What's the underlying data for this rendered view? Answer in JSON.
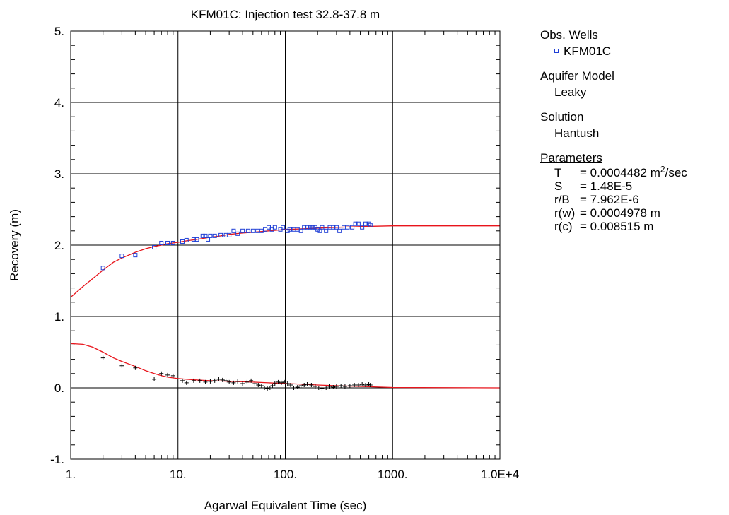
{
  "chart_data": {
    "type": "scatter",
    "title": "KFM01C: Injection test 32.8-37.8 m",
    "xlabel": "Agarwal Equivalent Time (sec)",
    "ylabel": "Recovery (m)",
    "x_scale": "log",
    "xlim": [
      1,
      10000
    ],
    "ylim": [
      -1,
      5
    ],
    "x_tick_values": [
      1,
      10,
      100,
      1000,
      10000
    ],
    "x_tick_labels": [
      "1.",
      "10.",
      "100.",
      "1000.",
      "1.0E+4"
    ],
    "y_tick_values": [
      -1,
      0,
      1,
      2,
      3,
      4,
      5
    ],
    "y_tick_labels": [
      "-1.",
      "0.",
      "1.",
      "2.",
      "3.",
      "4.",
      "5."
    ],
    "grid": true,
    "colors": {
      "observed": "#1f3fd6",
      "derivative": "#000000",
      "fit": "#e8141b"
    },
    "series": [
      {
        "name": "KFM01C",
        "kind": "observed",
        "marker": "square",
        "points": [
          [
            2,
            1.68
          ],
          [
            3,
            1.85
          ],
          [
            4,
            1.86
          ],
          [
            6,
            1.97
          ],
          [
            7,
            2.03
          ],
          [
            8,
            2.03
          ],
          [
            9,
            2.03
          ],
          [
            11,
            2.05
          ],
          [
            12,
            2.07
          ],
          [
            14,
            2.08
          ],
          [
            15,
            2.08
          ],
          [
            17,
            2.13
          ],
          [
            18,
            2.13
          ],
          [
            19,
            2.08
          ],
          [
            20,
            2.13
          ],
          [
            22,
            2.13
          ],
          [
            25,
            2.14
          ],
          [
            28,
            2.14
          ],
          [
            30,
            2.14
          ],
          [
            33,
            2.2
          ],
          [
            36,
            2.16
          ],
          [
            40,
            2.2
          ],
          [
            45,
            2.2
          ],
          [
            50,
            2.2
          ],
          [
            55,
            2.2
          ],
          [
            60,
            2.2
          ],
          [
            65,
            2.22
          ],
          [
            70,
            2.25
          ],
          [
            75,
            2.22
          ],
          [
            80,
            2.25
          ],
          [
            90,
            2.22
          ],
          [
            95,
            2.25
          ],
          [
            105,
            2.2
          ],
          [
            110,
            2.22
          ],
          [
            120,
            2.22
          ],
          [
            130,
            2.22
          ],
          [
            140,
            2.2
          ],
          [
            150,
            2.25
          ],
          [
            160,
            2.25
          ],
          [
            170,
            2.25
          ],
          [
            180,
            2.25
          ],
          [
            190,
            2.25
          ],
          [
            200,
            2.22
          ],
          [
            210,
            2.2
          ],
          [
            220,
            2.25
          ],
          [
            240,
            2.2
          ],
          [
            260,
            2.25
          ],
          [
            280,
            2.25
          ],
          [
            300,
            2.25
          ],
          [
            320,
            2.2
          ],
          [
            350,
            2.25
          ],
          [
            380,
            2.25
          ],
          [
            420,
            2.25
          ],
          [
            450,
            2.3
          ],
          [
            480,
            2.3
          ],
          [
            520,
            2.25
          ],
          [
            560,
            2.3
          ],
          [
            600,
            2.3
          ],
          [
            620,
            2.28
          ]
        ]
      },
      {
        "kind": "derivative",
        "marker": "plus",
        "points": [
          [
            2,
            0.42
          ],
          [
            3,
            0.31
          ],
          [
            4,
            0.28
          ],
          [
            6,
            0.12
          ],
          [
            7,
            0.2
          ],
          [
            8,
            0.18
          ],
          [
            9,
            0.17
          ],
          [
            11,
            0.1
          ],
          [
            12,
            0.07
          ],
          [
            14,
            0.1
          ],
          [
            16,
            0.1
          ],
          [
            18,
            0.08
          ],
          [
            20,
            0.09
          ],
          [
            22,
            0.1
          ],
          [
            24,
            0.12
          ],
          [
            26,
            0.11
          ],
          [
            28,
            0.1
          ],
          [
            30,
            0.08
          ],
          [
            33,
            0.07
          ],
          [
            36,
            0.09
          ],
          [
            40,
            0.06
          ],
          [
            44,
            0.08
          ],
          [
            48,
            0.1
          ],
          [
            52,
            0.06
          ],
          [
            56,
            0.04
          ],
          [
            60,
            0.03
          ],
          [
            64,
            0.0
          ],
          [
            68,
            -0.01
          ],
          [
            72,
            0.0
          ],
          [
            76,
            0.03
          ],
          [
            80,
            0.06
          ],
          [
            86,
            0.08
          ],
          [
            92,
            0.07
          ],
          [
            98,
            0.08
          ],
          [
            105,
            0.06
          ],
          [
            112,
            0.04
          ],
          [
            120,
            0.0
          ],
          [
            130,
            0.01
          ],
          [
            140,
            0.03
          ],
          [
            150,
            0.04
          ],
          [
            160,
            0.05
          ],
          [
            175,
            0.04
          ],
          [
            190,
            0.02
          ],
          [
            205,
            0.0
          ],
          [
            220,
            -0.01
          ],
          [
            240,
            0.0
          ],
          [
            260,
            0.02
          ],
          [
            280,
            0.01
          ],
          [
            300,
            0.02
          ],
          [
            330,
            0.03
          ],
          [
            360,
            0.02
          ],
          [
            400,
            0.03
          ],
          [
            440,
            0.04
          ],
          [
            480,
            0.04
          ],
          [
            520,
            0.05
          ],
          [
            560,
            0.04
          ],
          [
            600,
            0.05
          ],
          [
            620,
            0.04
          ]
        ]
      },
      {
        "kind": "fit",
        "marker": "line",
        "points": [
          [
            1,
            1.27
          ],
          [
            1.3,
            1.42
          ],
          [
            1.6,
            1.53
          ],
          [
            2,
            1.65
          ],
          [
            2.5,
            1.76
          ],
          [
            3,
            1.82
          ],
          [
            4,
            1.9
          ],
          [
            5,
            1.95
          ],
          [
            6,
            1.98
          ],
          [
            7,
            2.0
          ],
          [
            8,
            2.02
          ],
          [
            10,
            2.04
          ],
          [
            12,
            2.06
          ],
          [
            15,
            2.08
          ],
          [
            20,
            2.11
          ],
          [
            25,
            2.13
          ],
          [
            30,
            2.15
          ],
          [
            40,
            2.17
          ],
          [
            50,
            2.18
          ],
          [
            70,
            2.2
          ],
          [
            100,
            2.22
          ],
          [
            150,
            2.23
          ],
          [
            200,
            2.24
          ],
          [
            300,
            2.25
          ],
          [
            500,
            2.26
          ],
          [
            1000,
            2.27
          ],
          [
            10000,
            2.27
          ]
        ]
      },
      {
        "kind": "fit",
        "marker": "line",
        "points": [
          [
            1,
            0.62
          ],
          [
            1.3,
            0.61
          ],
          [
            1.6,
            0.57
          ],
          [
            2,
            0.5
          ],
          [
            2.5,
            0.42
          ],
          [
            3,
            0.37
          ],
          [
            4,
            0.3
          ],
          [
            5,
            0.24
          ],
          [
            6,
            0.2
          ],
          [
            7,
            0.17
          ],
          [
            8,
            0.15
          ],
          [
            10,
            0.13
          ],
          [
            12,
            0.12
          ],
          [
            15,
            0.11
          ],
          [
            20,
            0.1
          ],
          [
            25,
            0.095
          ],
          [
            30,
            0.09
          ],
          [
            40,
            0.085
          ],
          [
            50,
            0.08
          ],
          [
            70,
            0.07
          ],
          [
            100,
            0.06
          ],
          [
            150,
            0.05
          ],
          [
            200,
            0.04
          ],
          [
            300,
            0.03
          ],
          [
            500,
            0.02
          ],
          [
            1000,
            0.005
          ],
          [
            10000,
            0.0
          ]
        ]
      }
    ]
  },
  "side_panel": {
    "obs_wells_header": "Obs. Wells",
    "obs_well_name": "KFM01C",
    "aquifer_model_header": "Aquifer Model",
    "aquifer_model": "Leaky",
    "solution_header": "Solution",
    "solution": "Hantush",
    "parameters_header": "Parameters",
    "parameters": [
      {
        "name": "T",
        "value": "= 0.0004482 m",
        "sup": "2",
        "suffix": "/sec"
      },
      {
        "name": "S",
        "value": "= 1.48E-5"
      },
      {
        "name": "r/B",
        "value": "= 7.962E-6"
      },
      {
        "name": "r(w)",
        "value": "= 0.0004978 m"
      },
      {
        "name": "r(c)",
        "value": "= 0.008515 m"
      }
    ]
  }
}
